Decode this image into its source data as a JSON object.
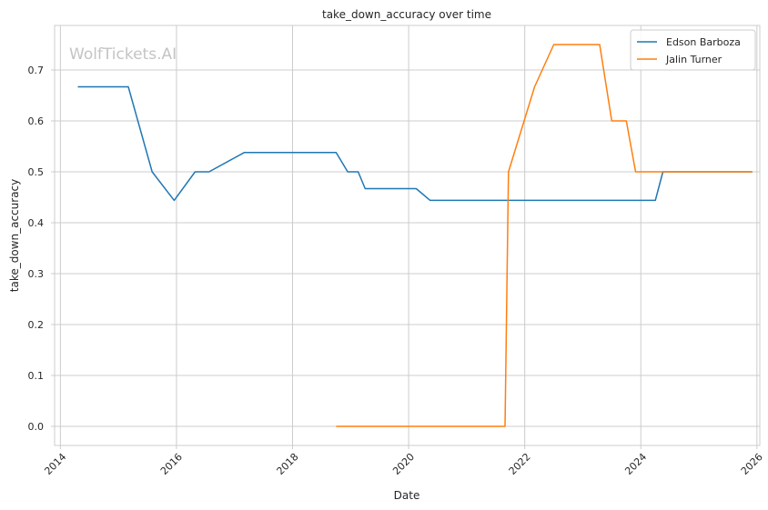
{
  "chart_data": {
    "type": "line",
    "title": "take_down_accuracy over time",
    "xlabel": "Date",
    "ylabel": "take_down_accuracy",
    "watermark": "WolfTickets.AI",
    "xlim": [
      2013.9,
      2026.05
    ],
    "ylim": [
      -0.0375,
      0.7875
    ],
    "x_ticks": [
      2014,
      2016,
      2018,
      2020,
      2022,
      2024,
      2026
    ],
    "x_tick_labels": [
      "2014",
      "2016",
      "2018",
      "2020",
      "2022",
      "2024",
      "2026"
    ],
    "y_ticks": [
      0.0,
      0.1,
      0.2,
      0.3,
      0.4,
      0.5,
      0.6,
      0.7
    ],
    "y_tick_labels": [
      "0.0",
      "0.1",
      "0.2",
      "0.3",
      "0.4",
      "0.5",
      "0.6",
      "0.7"
    ],
    "grid": true,
    "legend_position": "top-right",
    "series": [
      {
        "name": "Edson Barboza",
        "color": "#1f77b4",
        "x": [
          2014.3,
          2015.17,
          2015.58,
          2015.96,
          2016.32,
          2016.56,
          2017.17,
          2018.75,
          2018.95,
          2019.13,
          2019.25,
          2020.13,
          2020.37,
          2024.25,
          2024.38,
          2025.92
        ],
        "y": [
          0.667,
          0.667,
          0.5,
          0.444,
          0.5,
          0.5,
          0.538,
          0.538,
          0.5,
          0.5,
          0.467,
          0.467,
          0.444,
          0.444,
          0.5,
          0.5
        ]
      },
      {
        "name": "Jalin Turner",
        "color": "#ff7f0e",
        "x": [
          2018.75,
          2021.66,
          2021.72,
          2022.17,
          2022.5,
          2023.29,
          2023.5,
          2023.75,
          2023.91,
          2025.92
        ],
        "y": [
          0.0,
          0.0,
          0.5,
          0.667,
          0.75,
          0.75,
          0.6,
          0.6,
          0.5,
          0.5
        ]
      }
    ]
  }
}
